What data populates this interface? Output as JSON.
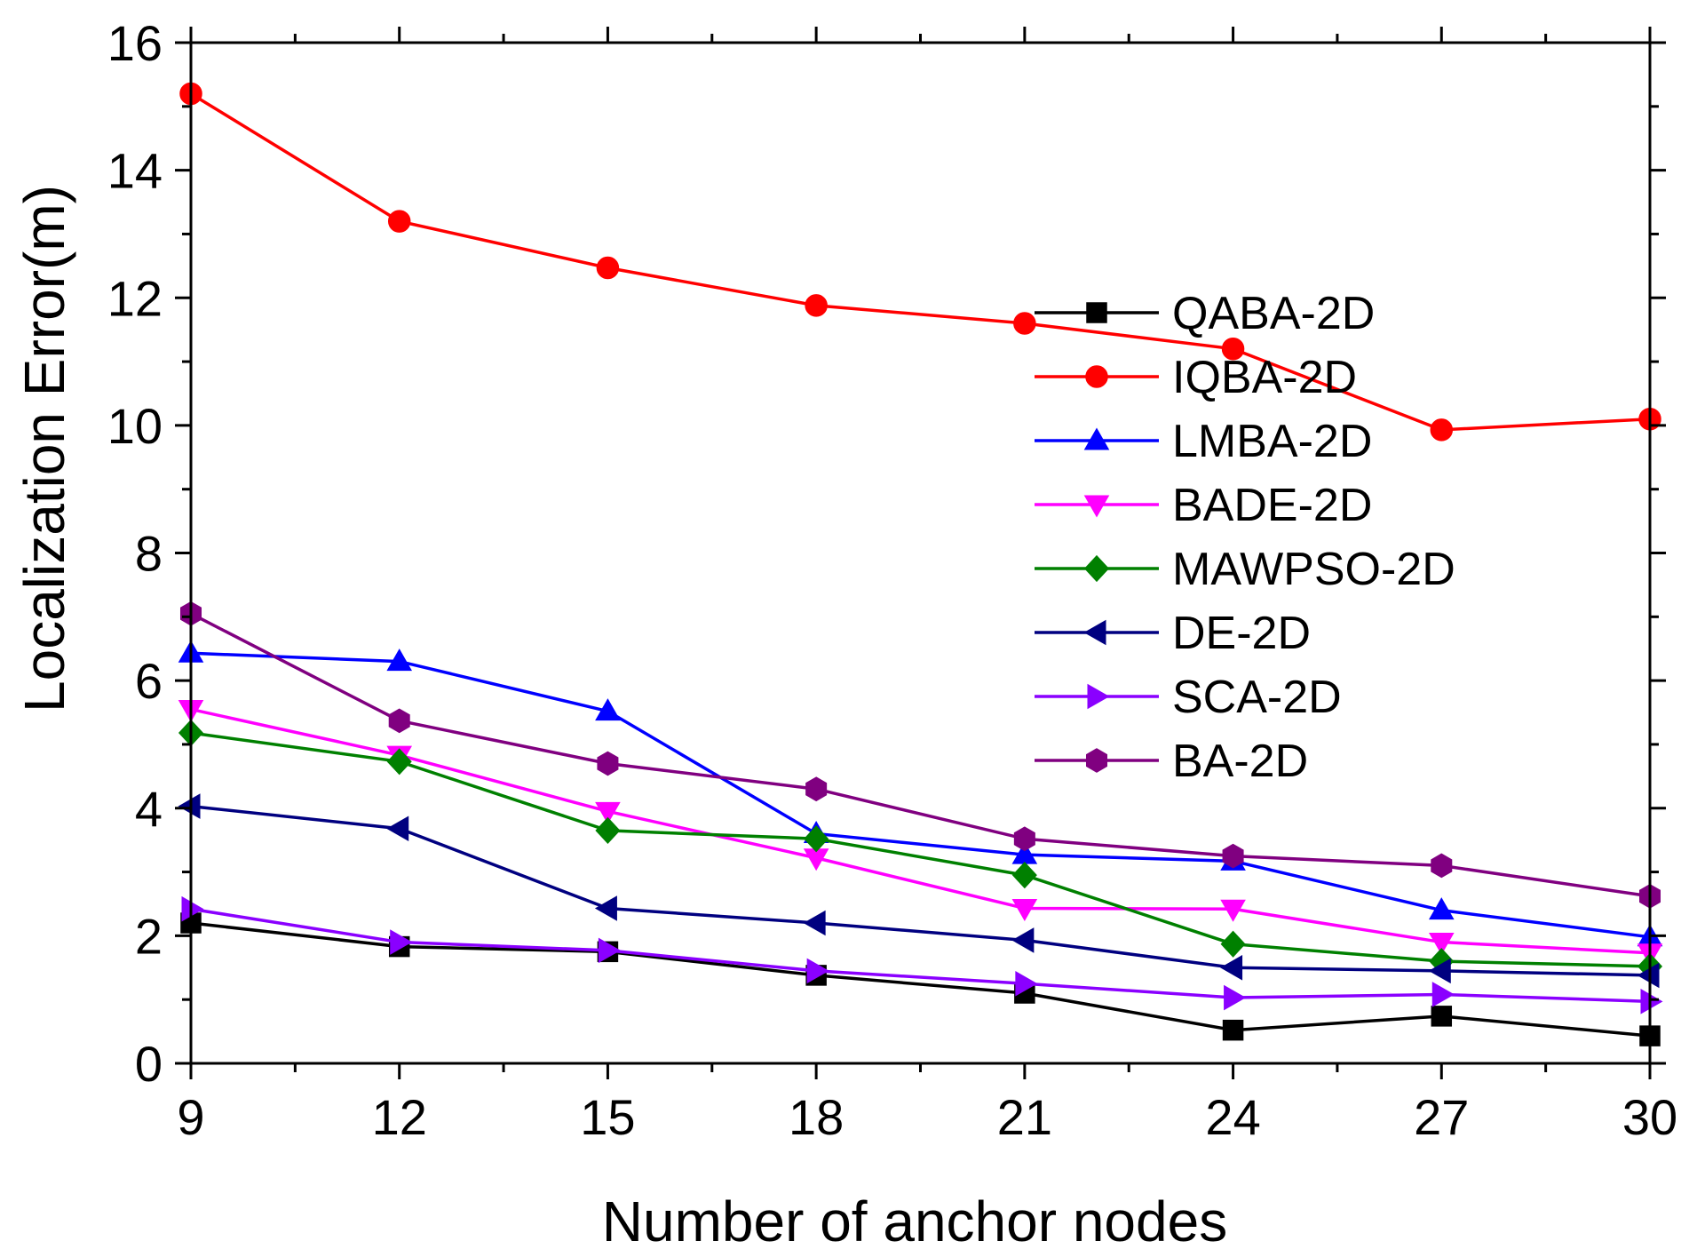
{
  "chart_data": {
    "type": "line",
    "title": "",
    "xlabel": "Number of anchor nodes",
    "ylabel": "Localization Error(m)",
    "x": [
      9,
      12,
      15,
      18,
      21,
      24,
      27,
      30
    ],
    "xlim": [
      9,
      30
    ],
    "ylim": [
      0,
      16
    ],
    "xticks": [
      9,
      12,
      15,
      18,
      21,
      24,
      27,
      30
    ],
    "yticks": [
      0,
      2,
      4,
      6,
      8,
      10,
      12,
      14,
      16
    ],
    "grid": false,
    "legend_position": "center-right",
    "series": [
      {
        "name": "QABA-2D",
        "color": "#000000",
        "marker": "square",
        "values": [
          2.2,
          1.83,
          1.75,
          1.38,
          1.1,
          0.52,
          0.74,
          0.43
        ]
      },
      {
        "name": "IQBA-2D",
        "color": "#ff0000",
        "marker": "circle",
        "values": [
          15.2,
          13.2,
          12.47,
          11.88,
          11.6,
          11.2,
          9.93,
          10.1
        ]
      },
      {
        "name": "LMBA-2D",
        "color": "#0000ff",
        "marker": "triangle-up",
        "values": [
          6.43,
          6.3,
          5.52,
          3.6,
          3.27,
          3.17,
          2.4,
          1.98
        ]
      },
      {
        "name": "BADE-2D",
        "color": "#ff00ff",
        "marker": "triangle-down",
        "values": [
          5.55,
          4.83,
          3.95,
          3.22,
          2.43,
          2.42,
          1.9,
          1.73
        ]
      },
      {
        "name": "MAWPSO-2D",
        "color": "#008000",
        "marker": "diamond",
        "values": [
          5.18,
          4.73,
          3.65,
          3.52,
          2.95,
          1.87,
          1.6,
          1.52
        ]
      },
      {
        "name": "DE-2D",
        "color": "#000080",
        "marker": "triangle-left",
        "values": [
          4.03,
          3.68,
          2.43,
          2.2,
          1.93,
          1.5,
          1.45,
          1.38
        ]
      },
      {
        "name": "SCA-2D",
        "color": "#8a00ff",
        "marker": "triangle-right",
        "values": [
          2.42,
          1.9,
          1.77,
          1.45,
          1.25,
          1.03,
          1.08,
          0.97
        ]
      },
      {
        "name": "BA-2D",
        "color": "#800080",
        "marker": "hexagon",
        "values": [
          7.05,
          5.37,
          4.7,
          4.3,
          3.52,
          3.25,
          3.1,
          2.62
        ]
      }
    ]
  }
}
